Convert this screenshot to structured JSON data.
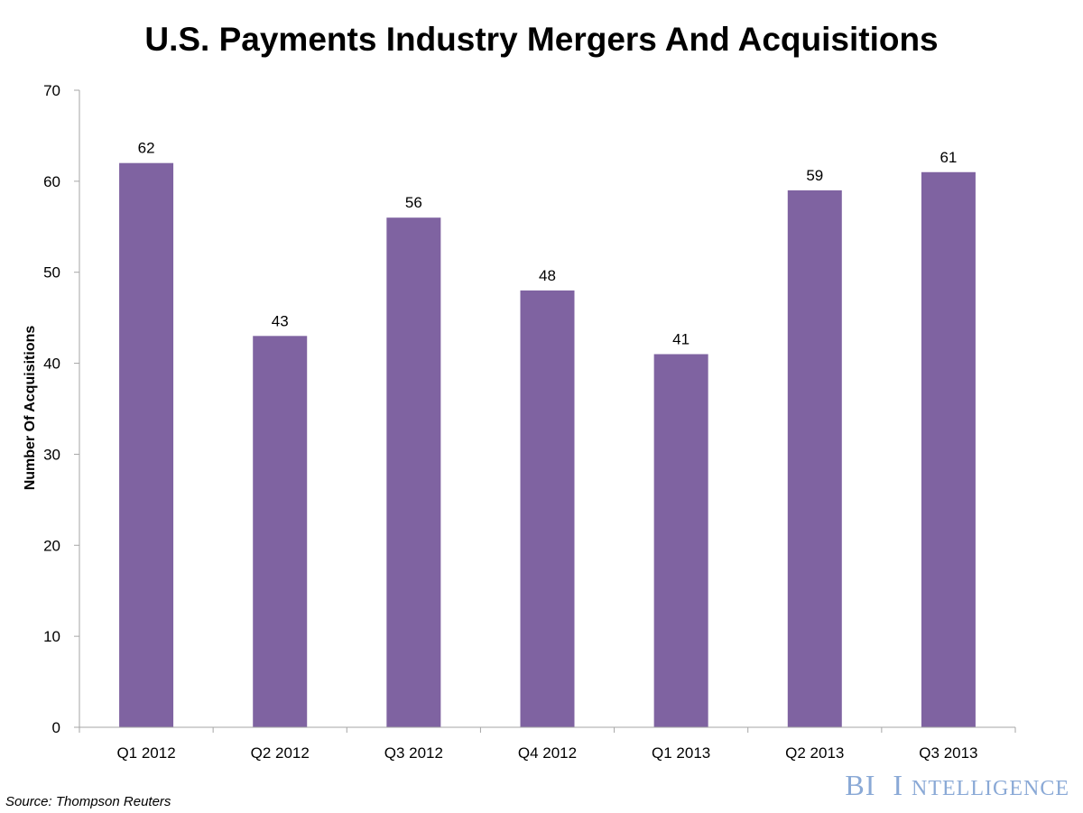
{
  "chart_data": {
    "type": "bar",
    "title": "U.S. Payments Industry Mergers And Acquisitions",
    "ylabel": "Number Of Acquisitions",
    "xlabel": "",
    "categories": [
      "Q1 2012",
      "Q2 2012",
      "Q3 2012",
      "Q4 2012",
      "Q1 2013",
      "Q2 2013",
      "Q3 2013"
    ],
    "values": [
      62,
      43,
      56,
      48,
      41,
      59,
      61
    ],
    "ylim": [
      0,
      70
    ],
    "yticks": [
      0,
      10,
      20,
      30,
      40,
      50,
      60,
      70
    ],
    "grid": false,
    "legend": "none",
    "bar_color": "#7f63a1"
  },
  "source": "Source: Thompson Reuters",
  "brand": {
    "bi": "BI",
    "intelligence_initial": "I",
    "intelligence_rest": "NTELLIGENCE",
    "color": "#8aa9d6"
  }
}
